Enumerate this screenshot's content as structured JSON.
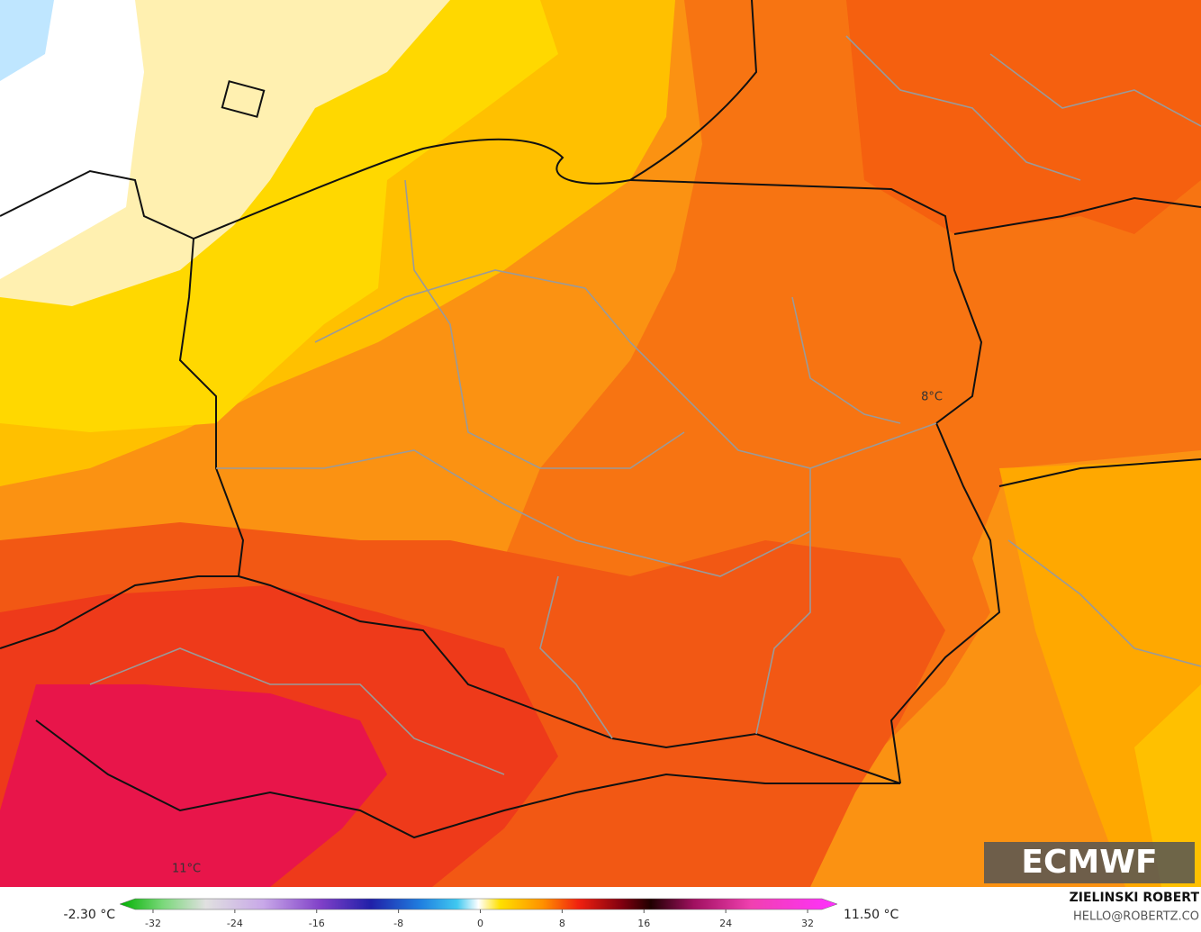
{
  "map": {
    "labels": [
      "8°C",
      "11°C"
    ],
    "logo": "ECMWF"
  },
  "legend": {
    "min_label": "-2.30 °C",
    "max_label": "11.50 °C",
    "ticks": [
      -32,
      -24,
      -16,
      -8,
      0,
      8,
      16,
      24,
      32
    ]
  },
  "credit": {
    "name": "ZIELINSKI ROBERT",
    "contact": "HELLO@ROBERTZ.CO"
  }
}
